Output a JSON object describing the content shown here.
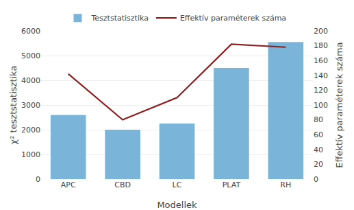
{
  "chart_data": {
    "type": "bar",
    "categories": [
      "APC",
      "CBD",
      "LC",
      "PLAT",
      "RH"
    ],
    "xlabel": "Modellek",
    "ylabel": "χ² tesztstatisztika",
    "y2label": "Effektív paraméterek száma",
    "series": [
      {
        "name": "Tesztstatisztika",
        "type": "bar",
        "color": "#7ab4d8",
        "values": [
          2600,
          2000,
          2250,
          4500,
          5550
        ]
      },
      {
        "name": "Effektív paraméterek száma",
        "type": "line",
        "color": "#8b2020",
        "axis": "y2",
        "values": [
          142,
          80,
          110,
          182,
          178
        ]
      }
    ],
    "ylim": [
      0,
      6000
    ],
    "yticks": [
      0,
      1000,
      2000,
      3000,
      4000,
      5000,
      6000
    ],
    "y2lim": [
      0,
      200
    ],
    "y2ticks": [
      0,
      20,
      40,
      60,
      80,
      100,
      120,
      140,
      160,
      180,
      200
    ],
    "grid": true,
    "legend": "top"
  }
}
